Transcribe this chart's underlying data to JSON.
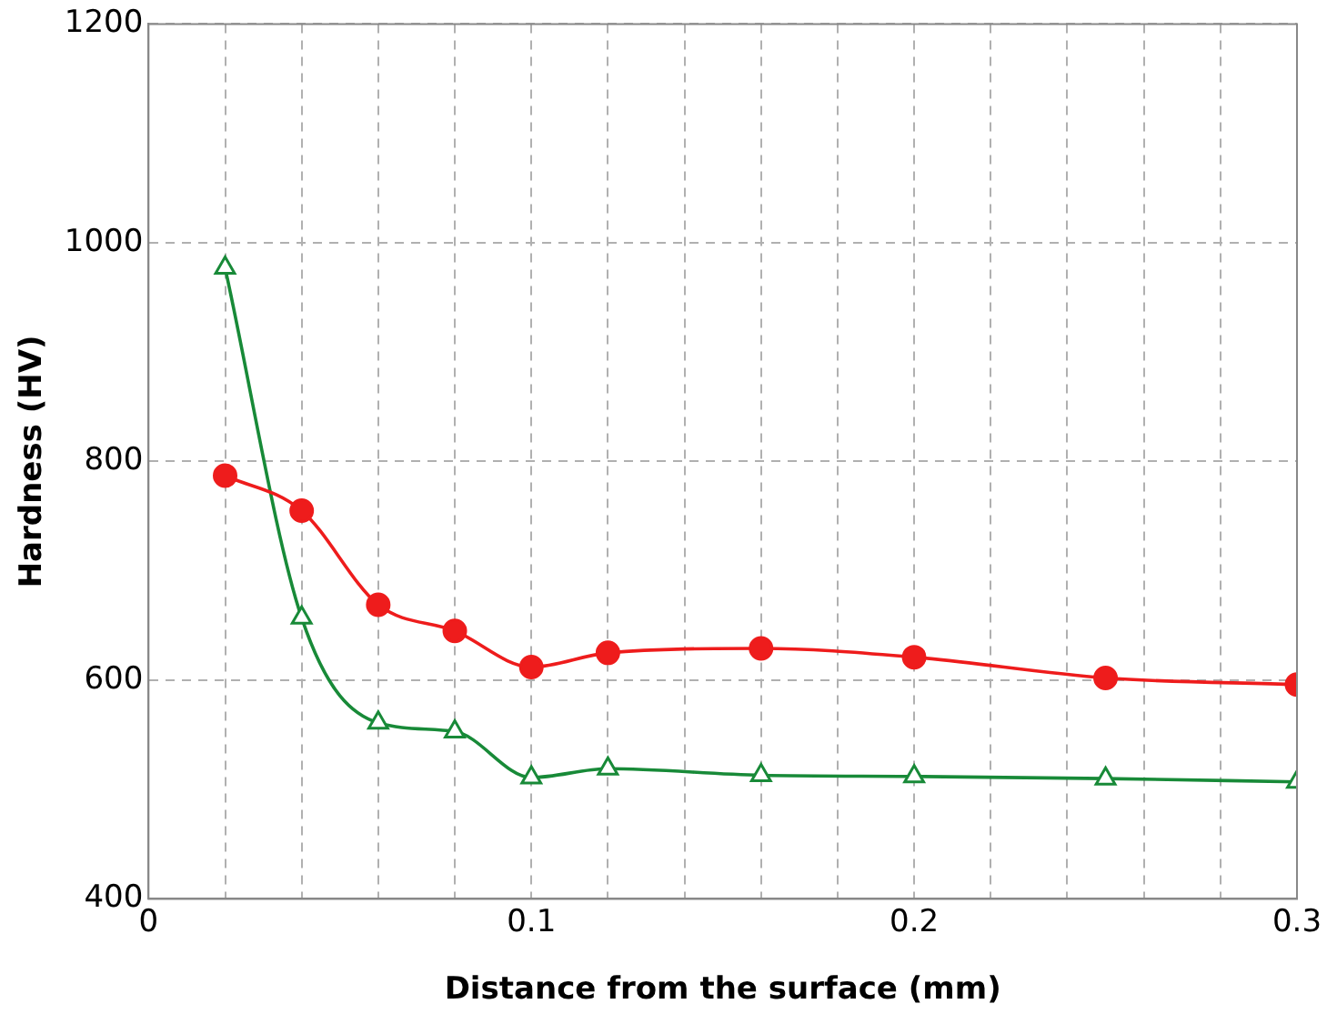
{
  "chart_data": {
    "type": "line",
    "xlabel": "Distance from the surface (mm)",
    "ylabel": "Hardness (HV)",
    "x": [
      0.02,
      0.04,
      0.06,
      0.08,
      0.1,
      0.12,
      0.16,
      0.2,
      0.25,
      0.3
    ],
    "series": [
      {
        "color": "#ee1c1c",
        "marker": "circle",
        "values": [
          787,
          755,
          669,
          645,
          612,
          625,
          629,
          621,
          602,
          596
        ]
      },
      {
        "color": "#188a38",
        "marker": "triangle",
        "values": [
          977,
          657,
          561,
          553,
          511,
          519,
          513,
          512,
          510,
          507
        ]
      }
    ],
    "xlim": [
      0,
      0.3
    ],
    "xticks": [
      0,
      {
        "value": 0.02,
        "label": null
      },
      {
        "value": 0.04,
        "label": null
      },
      {
        "value": 0.06,
        "label": null
      },
      {
        "value": 0.08,
        "label": null
      },
      0.1,
      {
        "value": 0.12,
        "label": null
      },
      {
        "value": 0.14,
        "label": null
      },
      {
        "value": 0.16,
        "label": null
      },
      {
        "value": 0.18,
        "label": null
      },
      0.2,
      {
        "value": 0.22,
        "label": null
      },
      {
        "value": 0.24,
        "label": null
      },
      {
        "value": 0.26,
        "label": null
      },
      {
        "value": 0.28,
        "label": null
      },
      0.3
    ],
    "ylim": [
      400,
      1200
    ],
    "yticks": [
      400,
      600,
      800,
      1000,
      1200
    ],
    "grid": true,
    "line_style": "solid"
  }
}
